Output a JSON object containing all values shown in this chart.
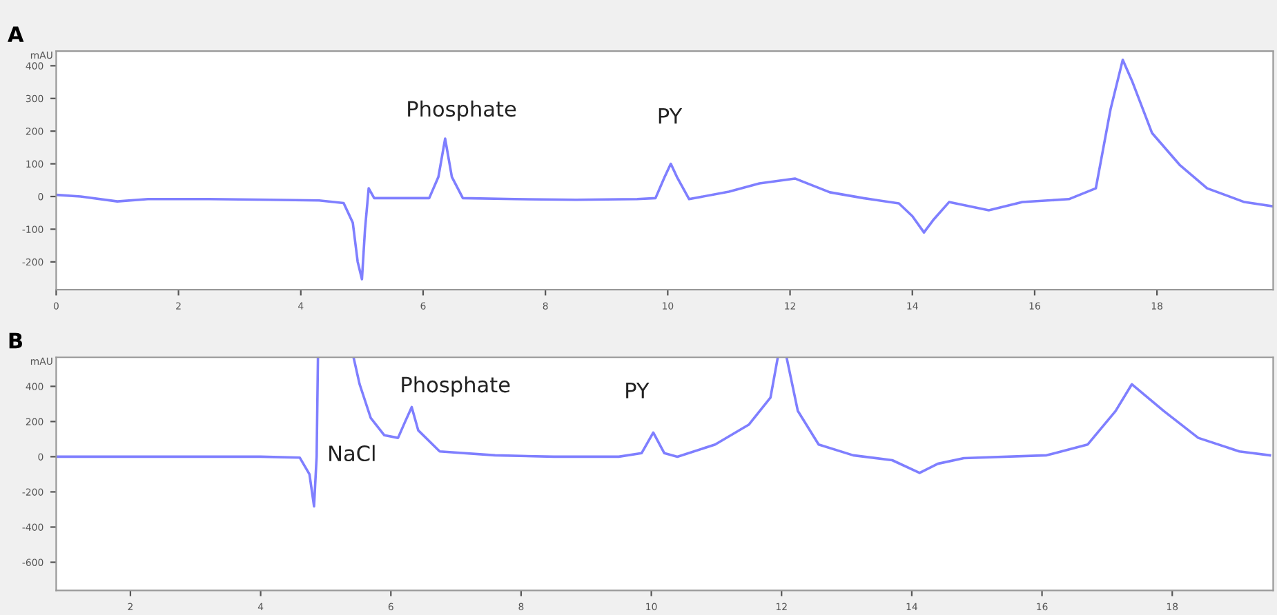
{
  "chart_data": [
    {
      "type": "line",
      "title": "A",
      "ylabel": "mAU",
      "xlim": [
        0,
        19.9
      ],
      "ylim": [
        -285,
        445
      ],
      "xticks": [
        0,
        2,
        4,
        6,
        8,
        10,
        12,
        14,
        16,
        18
      ],
      "yticks": [
        -200,
        -100,
        0,
        100,
        200,
        300,
        400
      ],
      "grid": false,
      "legend": false,
      "marker": "none",
      "line_style": "solid",
      "series": [
        {
          "color": "#7f7fff",
          "x": [
            0,
            0.4,
            1.0,
            1.5,
            2.5,
            3.5,
            4.3,
            4.7,
            4.85,
            4.93,
            5.0,
            5.05,
            5.11,
            5.2,
            5.6,
            6.1,
            6.25,
            6.36,
            6.47,
            6.65,
            7.5,
            8.5,
            9.5,
            9.8,
            9.95,
            10.05,
            10.15,
            10.35,
            11.0,
            11.5,
            12.08,
            12.65,
            13.2,
            13.78,
            14.0,
            14.19,
            14.35,
            14.6,
            15.25,
            15.8,
            16.56,
            17.0,
            17.24,
            17.44,
            17.6,
            17.92,
            18.37,
            18.82,
            19.43,
            19.9
          ],
          "values": [
            5,
            0,
            -15,
            -8,
            -8,
            -10,
            -12,
            -20,
            -80,
            -200,
            -253,
            -100,
            25,
            -5,
            -5,
            -5,
            60,
            177,
            60,
            -5,
            -8,
            -10,
            -8,
            -5,
            60,
            100,
            60,
            -8,
            15,
            40,
            55,
            13,
            -5,
            -21,
            -60,
            -110,
            -70,
            -17,
            -42,
            -17,
            -8,
            25,
            266,
            418,
            350,
            194,
            97,
            25,
            -17,
            -30
          ]
        }
      ],
      "annotations": [
        "Phosphate",
        "PY"
      ]
    },
    {
      "type": "line",
      "title": "B",
      "ylabel": "mAU",
      "xlim": [
        0.86,
        19.55
      ],
      "ylim": [
        -760,
        565
      ],
      "xticks": [
        2,
        4,
        6,
        8,
        10,
        12,
        14,
        16,
        18
      ],
      "yticks": [
        -600,
        -400,
        -200,
        0,
        200,
        400
      ],
      "grid": false,
      "legend": false,
      "marker": "none",
      "line_style": "solid",
      "series": [
        {
          "color": "#7f7fff",
          "x": [
            0.86,
            2,
            3,
            4,
            4.6,
            4.75,
            4.82,
            4.86,
            4.88,
            4.9,
            5.43,
            5.52,
            5.69,
            5.9,
            6.11,
            6.22,
            6.32,
            6.42,
            6.75,
            7.6,
            8.5,
            9.5,
            9.85,
            10.03,
            10.2,
            10.4,
            10.98,
            11.5,
            11.83,
            11.94,
            12.0,
            12.08,
            12.25,
            12.57,
            13.1,
            13.7,
            14.12,
            14.4,
            14.8,
            16.07,
            16.7,
            17.13,
            17.38,
            17.87,
            18.4,
            19.03,
            19.5
          ],
          "values": [
            0,
            0,
            0,
            0,
            -5,
            -100,
            -282,
            0,
            560,
            null,
            560,
            412,
            221,
            122,
            107,
            200,
            282,
            150,
            30,
            8,
            0,
            0,
            20,
            137,
            20,
            0,
            69,
            183,
            336,
            560,
            null,
            560,
            260,
            69,
            8,
            -20,
            -92,
            -40,
            -8,
            8,
            69,
            260,
            412,
            260,
            107,
            30,
            8
          ]
        }
      ],
      "annotations": [
        "Phosphate",
        "PY",
        "NaCl"
      ]
    }
  ]
}
